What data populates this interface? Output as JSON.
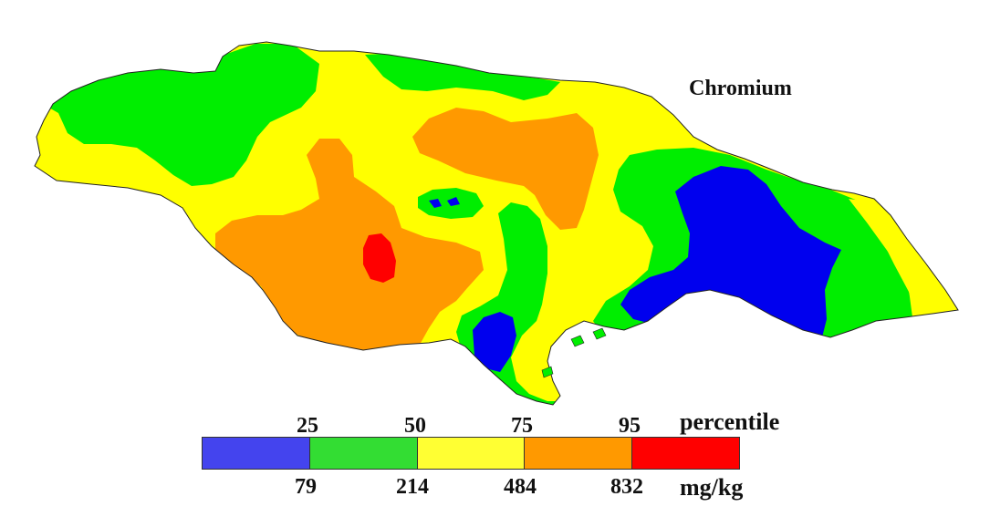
{
  "title": "Chromium",
  "legend": {
    "percentile_label": "percentile",
    "unit_label": "mg/kg",
    "percentiles": [
      "25",
      "50",
      "75",
      "95"
    ],
    "values": [
      "79",
      "214",
      "484",
      "832"
    ],
    "classes": [
      {
        "name": "below-25",
        "color": "#4444ee"
      },
      {
        "name": "25-50",
        "color": "#33dd33"
      },
      {
        "name": "50-75",
        "color": "#ffff33"
      },
      {
        "name": "75-95",
        "color": "#ff9900"
      },
      {
        "name": "above-95",
        "color": "#ff0000"
      }
    ]
  },
  "colors": {
    "low": "#0000ee",
    "medium_low": "#00ee00",
    "medium_high": "#ffff00",
    "high": "#ff9900",
    "very_high": "#ff0000"
  }
}
